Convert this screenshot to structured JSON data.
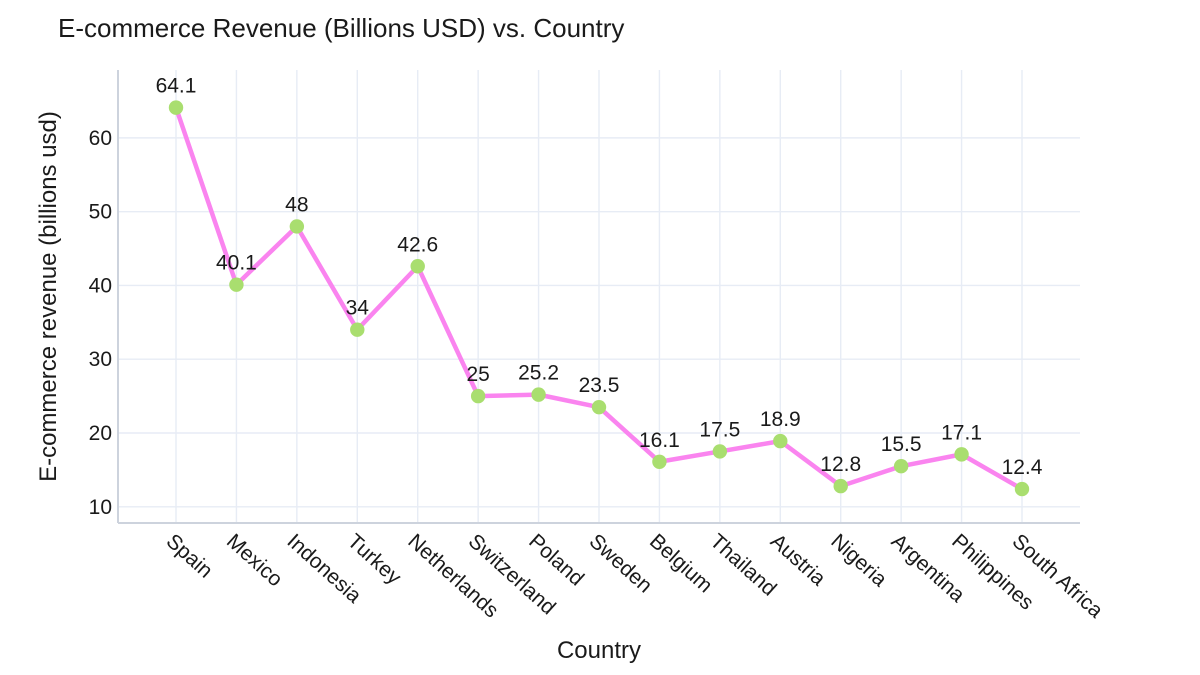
{
  "chart_data": {
    "type": "line",
    "title": "E-commerce Revenue (Billions USD) vs. Country",
    "xlabel": "Country",
    "ylabel": "E-commerce revenue (billions usd)",
    "categories": [
      "Spain",
      "Mexico",
      "Indonesia",
      "Turkey",
      "Netherlands",
      "Switzerland",
      "Poland",
      "Sweden",
      "Belgium",
      "Thailand",
      "Austria",
      "Nigeria",
      "Argentina",
      "Philippines",
      "South Africa"
    ],
    "values": [
      64.1,
      40.1,
      48,
      34,
      42.6,
      25,
      25.2,
      23.5,
      16.1,
      17.5,
      18.9,
      12.8,
      15.5,
      17.1,
      12.4
    ],
    "point_labels": [
      "64.1",
      "40.1",
      "48",
      "34",
      "42.6",
      "25",
      "25.2",
      "23.5",
      "16.1",
      "17.5",
      "18.9",
      "12.8",
      "15.5",
      "17.1",
      "12.4"
    ],
    "yticks": [
      10,
      20,
      30,
      40,
      50,
      60
    ],
    "ylim": [
      7.8,
      69.2
    ],
    "grid": true,
    "legend": false,
    "x_tick_angle_deg": 42,
    "colors": {
      "line": "#FA84EF",
      "marker": "#A9DE6F",
      "grid": "#E7ECF5",
      "axis_line": "#CDD3DD",
      "text": "#1A1A1A",
      "background": "#FFFFFF"
    }
  }
}
